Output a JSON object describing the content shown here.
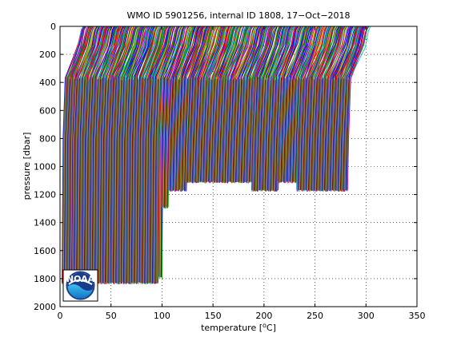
{
  "chart_data": {
    "type": "line",
    "title": "WMO ID 5901256, internal ID 1808, 17−Oct−2018",
    "xlabel": "temperature [°C]",
    "xlabel_parts": {
      "prefix": "temperature [",
      "sup": "o",
      "suffix": "C]"
    },
    "ylabel": "pressure [dbar]",
    "xlim": [
      0,
      350
    ],
    "ylim": [
      2000,
      0
    ],
    "y_reversed": true,
    "xticks": [
      0,
      50,
      100,
      150,
      200,
      250,
      300,
      350
    ],
    "yticks": [
      0,
      200,
      400,
      600,
      800,
      1000,
      1200,
      1400,
      1600,
      1800,
      2000
    ],
    "grid": true,
    "grid_style": "dotted",
    "series_colors": [
      "#0000ff",
      "#00a000",
      "#ff0000",
      "#00c0c0",
      "#c000c0",
      "#c0c000",
      "#404040"
    ],
    "profiles": {
      "description_note": "",
      "sections": [
        {
          "x_start": 2,
          "x_end": 12,
          "count": 30,
          "top_x_offset": 12,
          "base_pressure": 1840,
          "step": 0.33
        },
        {
          "x_start": 12,
          "x_end": 96,
          "count": 230,
          "top_x_offset": 12,
          "base_pressure": 1840,
          "step": 0.37
        },
        {
          "x_start": 96,
          "x_end": 100,
          "count": 8,
          "top_x_offset": 12,
          "base_pressure": 1800,
          "step": 0.5
        },
        {
          "x_start": 100,
          "x_end": 106,
          "count": 14,
          "top_x_offset": 12,
          "base_pressure": 1300,
          "step": 0.43
        },
        {
          "x_start": 106,
          "x_end": 124,
          "count": 45,
          "top_x_offset": 12,
          "base_pressure": 1180,
          "step": 0.4
        },
        {
          "x_start": 124,
          "x_end": 188,
          "count": 170,
          "top_x_offset": 12,
          "base_pressure": 1120,
          "step": 0.38
        },
        {
          "x_start": 188,
          "x_end": 214,
          "count": 70,
          "top_x_offset": 12,
          "base_pressure": 1180,
          "step": 0.37
        },
        {
          "x_start": 214,
          "x_end": 232,
          "count": 45,
          "top_x_offset": 12,
          "base_pressure": 1120,
          "step": 0.4
        },
        {
          "x_start": 232,
          "x_end": 282,
          "count": 135,
          "top_x_offset": 12,
          "base_pressure": 1180,
          "step": 0.37
        }
      ]
    }
  },
  "logo": {
    "text": "NOAA"
  }
}
